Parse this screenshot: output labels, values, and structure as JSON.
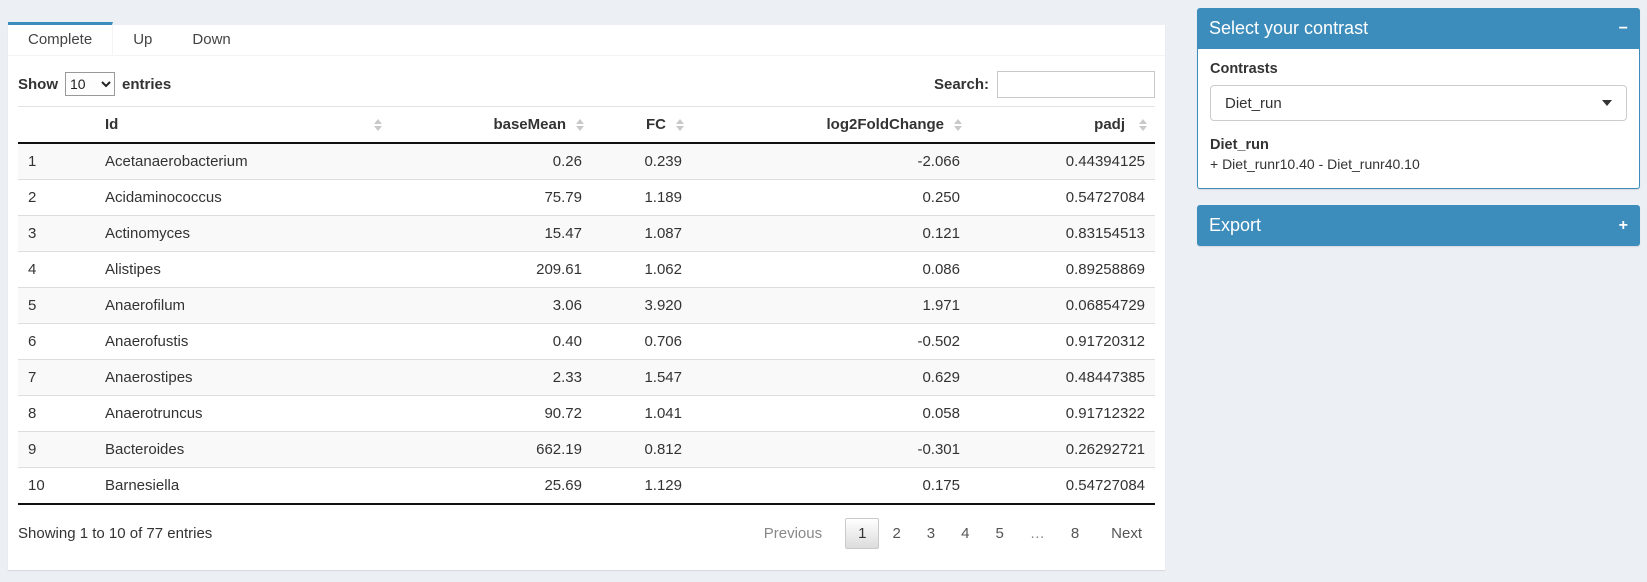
{
  "page": {
    "background": "#ecf0f5",
    "accent": "#3c8dbc"
  },
  "tabs": [
    {
      "label": "Complete",
      "active": true
    },
    {
      "label": "Up",
      "active": false
    },
    {
      "label": "Down",
      "active": false
    }
  ],
  "controls": {
    "show_label": "Show",
    "page_length": "10",
    "page_length_options_visible": [
      "10"
    ],
    "entries_label": "entries",
    "search_label": "Search:",
    "search_value": "",
    "search_placeholder": ""
  },
  "table": {
    "columns": [
      {
        "label": "",
        "sortable": false,
        "align": "left"
      },
      {
        "label": "Id",
        "sortable": true,
        "align": "left"
      },
      {
        "label": "baseMean",
        "sortable": true,
        "align": "right"
      },
      {
        "label": "FC",
        "sortable": true,
        "align": "right"
      },
      {
        "label": "log2FoldChange",
        "sortable": true,
        "align": "right"
      },
      {
        "label": "padj",
        "sortable": true,
        "align": "right"
      }
    ],
    "rows": [
      [
        "1",
        "Acetanaerobacterium",
        "0.26",
        "0.239",
        "-2.066",
        "0.44394125"
      ],
      [
        "2",
        "Acidaminococcus",
        "75.79",
        "1.189",
        "0.250",
        "0.54727084"
      ],
      [
        "3",
        "Actinomyces",
        "15.47",
        "1.087",
        "0.121",
        "0.83154513"
      ],
      [
        "4",
        "Alistipes",
        "209.61",
        "1.062",
        "0.086",
        "0.89258869"
      ],
      [
        "5",
        "Anaerofilum",
        "3.06",
        "3.920",
        "1.971",
        "0.06854729"
      ],
      [
        "6",
        "Anaerofustis",
        "0.40",
        "0.706",
        "-0.502",
        "0.91720312"
      ],
      [
        "7",
        "Anaerostipes",
        "2.33",
        "1.547",
        "0.629",
        "0.48447385"
      ],
      [
        "8",
        "Anaerotruncus",
        "90.72",
        "1.041",
        "0.058",
        "0.91712322"
      ],
      [
        "9",
        "Bacteroides",
        "662.19",
        "0.812",
        "-0.301",
        "0.26292721"
      ],
      [
        "10",
        "Barnesiella",
        "25.69",
        "1.129",
        "0.175",
        "0.54727084"
      ]
    ]
  },
  "table_footer": {
    "info": "Showing 1 to 10 of 77 entries",
    "pagination": [
      {
        "label": "Previous",
        "state": "disabled",
        "kind": "prev"
      },
      {
        "label": "1",
        "state": "active",
        "kind": "page"
      },
      {
        "label": "2",
        "state": "normal",
        "kind": "page"
      },
      {
        "label": "3",
        "state": "normal",
        "kind": "page"
      },
      {
        "label": "4",
        "state": "normal",
        "kind": "page"
      },
      {
        "label": "5",
        "state": "normal",
        "kind": "page"
      },
      {
        "label": "…",
        "state": "disabled",
        "kind": "ellipsis"
      },
      {
        "label": "8",
        "state": "normal",
        "kind": "page"
      },
      {
        "label": "Next",
        "state": "normal",
        "kind": "next"
      }
    ]
  },
  "contrast_box": {
    "title": "Select your contrast",
    "collapse_icon": "minus",
    "contrasts_label": "Contrasts",
    "selected_contrast": "Diet_run",
    "contrast_name": "Diet_run",
    "contrast_formula": "+ Diet_runr10.40 - Diet_runr40.10"
  },
  "export_box": {
    "title": "Export",
    "collapse_icon": "plus"
  }
}
